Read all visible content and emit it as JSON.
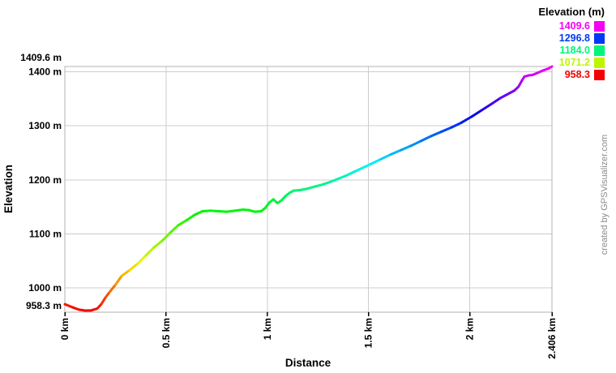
{
  "chart": {
    "xlabel": "Distance",
    "ylabel": "Elevation",
    "watermark": "created by GPSVisualizer.com"
  },
  "legend": {
    "title": "Elevation (m)",
    "entries": [
      {
        "value": "1409.6",
        "color": "#f500f5"
      },
      {
        "value": "1296.8",
        "color": "#0039f5"
      },
      {
        "value": "1184.0",
        "color": "#00f57a"
      },
      {
        "value": "1071.2",
        "color": "#bdf500"
      },
      {
        "value": "958.3",
        "color": "#f50000"
      }
    ]
  },
  "chart_data": {
    "type": "line",
    "title": "",
    "xlabel": "Distance",
    "ylabel": "Elevation",
    "x_unit": "km",
    "y_unit": "m",
    "xlim": [
      0,
      2.406
    ],
    "ylim": [
      958.3,
      1409.6
    ],
    "grid": true,
    "legend_position": "top-right",
    "color_scale": {
      "min_value": 958.3,
      "max_value": 1409.6,
      "min_hue": 0,
      "max_hue": 300
    },
    "x_ticks": [
      {
        "value": 0,
        "label": "0 km"
      },
      {
        "value": 0.5,
        "label": "0.5 km"
      },
      {
        "value": 1,
        "label": "1 km"
      },
      {
        "value": 1.5,
        "label": "1.5 km"
      },
      {
        "value": 2,
        "label": "2 km"
      },
      {
        "value": 2.406,
        "label": "2.406 km"
      }
    ],
    "y_ticks": [
      {
        "value": 958.3,
        "label": "958.3 m",
        "dy": -6
      },
      {
        "value": 1000,
        "label": "1000 m",
        "dy": 0
      },
      {
        "value": 1100,
        "label": "1100 m",
        "dy": 0
      },
      {
        "value": 1200,
        "label": "1200 m",
        "dy": 0
      },
      {
        "value": 1300,
        "label": "1300 m",
        "dy": 0
      },
      {
        "value": 1400,
        "label": "1400 m",
        "dy": 0
      },
      {
        "value": 1409.6,
        "label": "1409.6 m",
        "dy": -11
      }
    ],
    "series": [
      {
        "name": "elevation-profile",
        "points": [
          [
            0.0,
            970
          ],
          [
            0.04,
            964
          ],
          [
            0.07,
            960
          ],
          [
            0.1,
            958.3
          ],
          [
            0.13,
            958.5
          ],
          [
            0.16,
            962
          ],
          [
            0.18,
            970
          ],
          [
            0.2,
            982
          ],
          [
            0.22,
            992
          ],
          [
            0.25,
            1006
          ],
          [
            0.28,
            1022
          ],
          [
            0.32,
            1033
          ],
          [
            0.36,
            1045
          ],
          [
            0.4,
            1060
          ],
          [
            0.44,
            1075
          ],
          [
            0.48,
            1087
          ],
          [
            0.52,
            1102
          ],
          [
            0.56,
            1116
          ],
          [
            0.6,
            1125
          ],
          [
            0.64,
            1135
          ],
          [
            0.68,
            1142
          ],
          [
            0.72,
            1143
          ],
          [
            0.76,
            1142
          ],
          [
            0.8,
            1141
          ],
          [
            0.84,
            1143
          ],
          [
            0.88,
            1145
          ],
          [
            0.91,
            1144
          ],
          [
            0.94,
            1141
          ],
          [
            0.97,
            1142
          ],
          [
            0.99,
            1148
          ],
          [
            1.01,
            1158
          ],
          [
            1.03,
            1164
          ],
          [
            1.05,
            1157
          ],
          [
            1.07,
            1162
          ],
          [
            1.09,
            1170
          ],
          [
            1.11,
            1176
          ],
          [
            1.13,
            1180
          ],
          [
            1.16,
            1181
          ],
          [
            1.19,
            1183
          ],
          [
            1.23,
            1187
          ],
          [
            1.27,
            1191
          ],
          [
            1.31,
            1196
          ],
          [
            1.35,
            1202
          ],
          [
            1.39,
            1208
          ],
          [
            1.43,
            1215
          ],
          [
            1.47,
            1222
          ],
          [
            1.51,
            1229
          ],
          [
            1.56,
            1238
          ],
          [
            1.61,
            1247
          ],
          [
            1.66,
            1255
          ],
          [
            1.71,
            1263
          ],
          [
            1.76,
            1272
          ],
          [
            1.81,
            1281
          ],
          [
            1.86,
            1289
          ],
          [
            1.91,
            1297
          ],
          [
            1.96,
            1306
          ],
          [
            2.01,
            1317
          ],
          [
            2.06,
            1329
          ],
          [
            2.11,
            1341
          ],
          [
            2.15,
            1351
          ],
          [
            2.19,
            1359
          ],
          [
            2.22,
            1365
          ],
          [
            2.24,
            1372
          ],
          [
            2.26,
            1385
          ],
          [
            2.27,
            1391
          ],
          [
            2.29,
            1393
          ],
          [
            2.31,
            1394
          ],
          [
            2.33,
            1397
          ],
          [
            2.36,
            1402
          ],
          [
            2.39,
            1406
          ],
          [
            2.406,
            1409.6
          ]
        ]
      }
    ]
  }
}
